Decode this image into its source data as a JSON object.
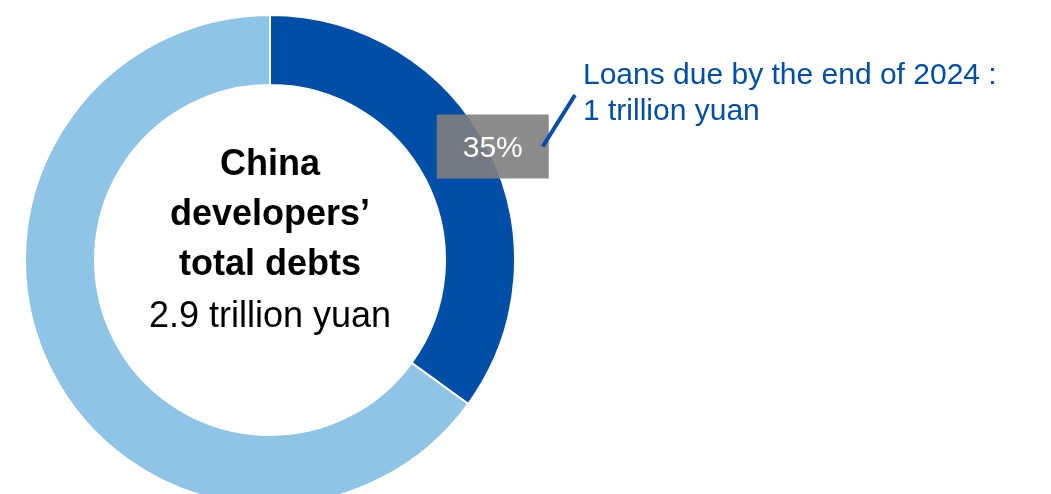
{
  "chart_data": {
    "type": "donut",
    "title": "China developers’ total debts",
    "subtitle": "2.9 trillion yuan",
    "categories": [
      "Loans due by the end of 2024 : 1 trillion yuan",
      null
    ],
    "values": [
      35,
      65
    ],
    "colors": [
      "#004ea8",
      "#8ec5e6"
    ],
    "value_labels": [
      "35%",
      null
    ]
  }
}
